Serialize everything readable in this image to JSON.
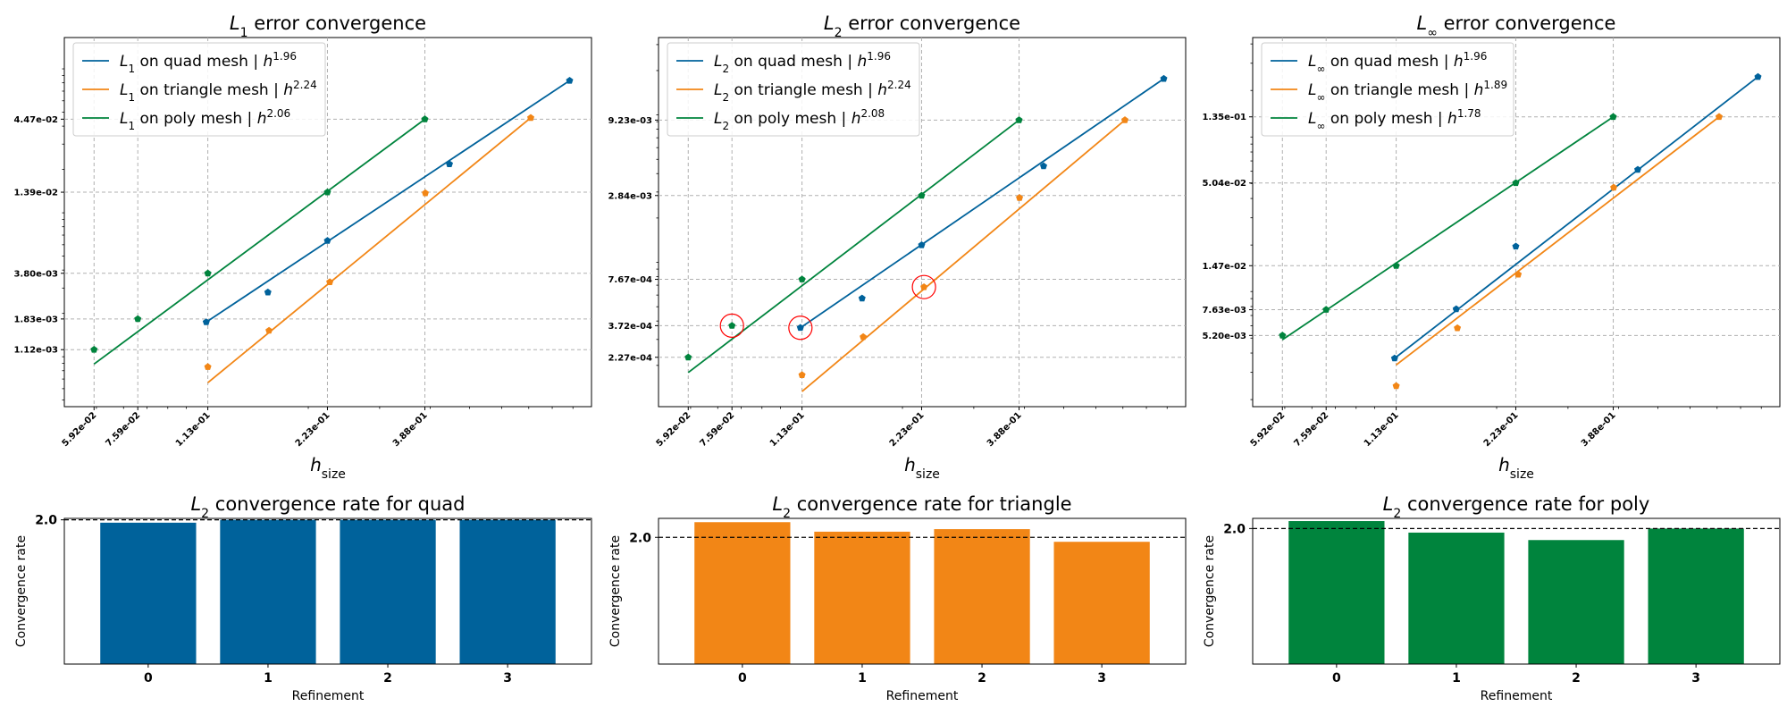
{
  "colors": {
    "quad": "#00629b",
    "triangle": "#f28616",
    "poly": "#00843d",
    "marker": "#ff0000"
  },
  "chart_data": [
    {
      "type": "line",
      "title_base": "L",
      "title_sub": "1",
      "title_rest": " error convergence",
      "xlabel_base": "h",
      "xlabel_sub": "size",
      "x_scale": "log",
      "y_scale": "log",
      "xlim": [
        0.05,
        1.0
      ],
      "ylim": [
        0.00045,
        0.165
      ],
      "x_ticks": [
        0.0592,
        0.0759,
        0.113,
        0.223,
        0.388
      ],
      "x_tick_labels": [
        "5.92e-02",
        "7.59e-02",
        "1.13e-01",
        "2.23e-01",
        "3.88e-01"
      ],
      "y_ticks": [
        0.00112,
        0.00183,
        0.0038,
        0.0139,
        0.0447
      ],
      "y_tick_labels": [
        "1.12e-03",
        "1.83e-03",
        "3.80e-03",
        "1.39e-02",
        "4.47e-02"
      ],
      "grid": true,
      "legend": "top-left",
      "series": [
        {
          "key": "quad",
          "base": "L",
          "sub": "1",
          "text": " on quad mesh | ",
          "exp": "1.96",
          "x": [
            0.112,
            0.159,
            0.223,
            0.446,
            0.883
          ],
          "y": [
            0.00174,
            0.0028,
            0.0064,
            0.0218,
            0.0828
          ],
          "fit": [
            [
              0.112,
              0.00174
            ],
            [
              0.883,
              0.0828
            ]
          ]
        },
        {
          "key": "triangle",
          "base": "L",
          "sub": "1",
          "text": " on triangle mesh | ",
          "exp": "2.24",
          "x": [
            0.113,
            0.16,
            0.226,
            0.389,
            0.708
          ],
          "y": [
            0.00085,
            0.00152,
            0.0033,
            0.0137,
            0.0457
          ],
          "fit": [
            [
              0.113,
              0.00066
            ],
            [
              0.708,
              0.0457
            ]
          ]
        },
        {
          "key": "poly",
          "base": "L",
          "sub": "1",
          "text": " on poly mesh | ",
          "exp": "2.06",
          "x": [
            0.0592,
            0.0759,
            0.113,
            0.223,
            0.388
          ],
          "y": [
            0.00112,
            0.00183,
            0.0038,
            0.0139,
            0.0447
          ],
          "fit": [
            [
              0.0592,
              0.00089
            ],
            [
              0.388,
              0.0447
            ]
          ]
        }
      ]
    },
    {
      "type": "line",
      "title_base": "L",
      "title_sub": "2",
      "title_rest": " error convergence",
      "xlabel_base": "h",
      "xlabel_sub": "size",
      "x_scale": "log",
      "y_scale": "log",
      "xlim": [
        0.05,
        1.0
      ],
      "ylim": [
        0.000105,
        0.0335
      ],
      "x_ticks": [
        0.0592,
        0.0759,
        0.113,
        0.223,
        0.388
      ],
      "x_tick_labels": [
        "5.92e-02",
        "7.59e-02",
        "1.13e-01",
        "2.23e-01",
        "3.88e-01"
      ],
      "y_ticks": [
        0.000227,
        0.000372,
        0.000767,
        0.00284,
        0.00923
      ],
      "y_tick_labels": [
        "2.27e-04",
        "3.72e-04",
        "7.67e-04",
        "2.84e-03",
        "9.23e-03"
      ],
      "grid": true,
      "legend": "top-left",
      "series": [
        {
          "key": "quad",
          "base": "L",
          "sub": "2",
          "text": " on quad mesh | ",
          "exp": "1.96",
          "x": [
            0.112,
            0.159,
            0.223,
            0.446,
            0.883
          ],
          "y": [
            0.00036,
            0.00057,
            0.00131,
            0.0045,
            0.0176
          ],
          "fit": [
            [
              0.112,
              0.00036
            ],
            [
              0.883,
              0.0176
            ]
          ]
        },
        {
          "key": "triangle",
          "base": "L",
          "sub": "2",
          "text": " on triangle mesh | ",
          "exp": "2.24",
          "x": [
            0.113,
            0.16,
            0.226,
            0.389,
            0.708
          ],
          "y": [
            0.000172,
            0.000312,
            0.00068,
            0.00274,
            0.00923
          ],
          "fit": [
            [
              0.113,
              0.000133
            ],
            [
              0.708,
              0.00923
            ]
          ]
        },
        {
          "key": "poly",
          "base": "L",
          "sub": "2",
          "text": " on poly mesh | ",
          "exp": "2.08",
          "x": [
            0.0592,
            0.0759,
            0.113,
            0.223,
            0.388
          ],
          "y": [
            0.000227,
            0.000372,
            0.000767,
            0.00284,
            0.00923
          ],
          "fit": [
            [
              0.0592,
              0.000179
            ],
            [
              0.388,
              0.00923
            ]
          ]
        }
      ],
      "highlights": [
        [
          0.0759,
          0.000372
        ],
        [
          0.112,
          0.00036
        ],
        [
          0.226,
          0.00068
        ]
      ]
    },
    {
      "type": "line",
      "title_base": "L",
      "title_sub": "∞",
      "title_rest": " error convergence",
      "xlabel_base": "h",
      "xlabel_sub": "size",
      "x_scale": "log",
      "y_scale": "log",
      "xlim": [
        0.05,
        1.0
      ],
      "ylim": [
        0.0018,
        0.44
      ],
      "x_ticks": [
        0.0592,
        0.0759,
        0.113,
        0.223,
        0.388
      ],
      "x_tick_labels": [
        "5.92e-02",
        "7.59e-02",
        "1.13e-01",
        "2.23e-01",
        "3.88e-01"
      ],
      "y_ticks": [
        0.0052,
        0.00763,
        0.0147,
        0.0504,
        0.135
      ],
      "y_tick_labels": [
        "5.20e-03",
        "7.63e-03",
        "1.47e-02",
        "5.04e-02",
        "1.35e-01"
      ],
      "grid": true,
      "legend": "top-left",
      "series": [
        {
          "key": "quad",
          "base": "L",
          "sub": "∞",
          "text": " on quad mesh | ",
          "exp": "1.96",
          "x": [
            0.112,
            0.159,
            0.223,
            0.446,
            0.883
          ],
          "y": [
            0.0037,
            0.0077,
            0.0196,
            0.0615,
            0.245
          ],
          "fit": [
            [
              0.112,
              0.0037
            ],
            [
              0.883,
              0.245
            ]
          ]
        },
        {
          "key": "triangle",
          "base": "L",
          "sub": "∞",
          "text": " on triangle mesh | ",
          "exp": "1.89",
          "x": [
            0.113,
            0.16,
            0.226,
            0.389,
            0.708
          ],
          "y": [
            0.00245,
            0.0058,
            0.0129,
            0.0471,
            0.135
          ],
          "fit": [
            [
              0.113,
              0.00335
            ],
            [
              0.708,
              0.135
            ]
          ]
        },
        {
          "key": "poly",
          "base": "L",
          "sub": "∞",
          "text": " on poly mesh | ",
          "exp": "1.78",
          "x": [
            0.0592,
            0.0759,
            0.113,
            0.223,
            0.388
          ],
          "y": [
            0.0052,
            0.00763,
            0.0147,
            0.0504,
            0.135
          ],
          "fit": [
            [
              0.0592,
              0.00488
            ],
            [
              0.388,
              0.135
            ]
          ]
        }
      ]
    },
    {
      "type": "bar",
      "title_base": "L",
      "title_sub": "2",
      "title_rest": " convergence rate for quad",
      "xlabel": "Refinement",
      "ylabel": "Convergence rate",
      "categories": [
        "0",
        "1",
        "2",
        "3"
      ],
      "values": [
        1.96,
        2.0,
        2.0,
        2.0
      ],
      "ylim": [
        0.0,
        2.02
      ],
      "y_ticks": [
        2.0
      ],
      "y_tick_labels": [
        "2.0"
      ],
      "reference_line": 2.0,
      "color_key": "quad"
    },
    {
      "type": "bar",
      "title_base": "L",
      "title_sub": "2",
      "title_rest": " convergence rate for triangle",
      "xlabel": "Refinement",
      "ylabel": "Convergence rate",
      "categories": [
        "0",
        "1",
        "2",
        "3"
      ],
      "values": [
        2.24,
        2.09,
        2.13,
        1.93
      ],
      "ylim": [
        0.0,
        2.3
      ],
      "y_ticks": [
        2.0
      ],
      "y_tick_labels": [
        "2.0"
      ],
      "reference_line": 2.0,
      "color_key": "triangle"
    },
    {
      "type": "bar",
      "title_base": "L",
      "title_sub": "2",
      "title_rest": " convergence rate for poly",
      "xlabel": "Refinement",
      "ylabel": "Convergence rate",
      "categories": [
        "0",
        "1",
        "2",
        "3"
      ],
      "values": [
        2.11,
        1.94,
        1.83,
        2.0
      ],
      "ylim": [
        0.0,
        2.15
      ],
      "y_ticks": [
        2.0
      ],
      "y_tick_labels": [
        "2.0"
      ],
      "reference_line": 2.0,
      "color_key": "poly"
    }
  ]
}
